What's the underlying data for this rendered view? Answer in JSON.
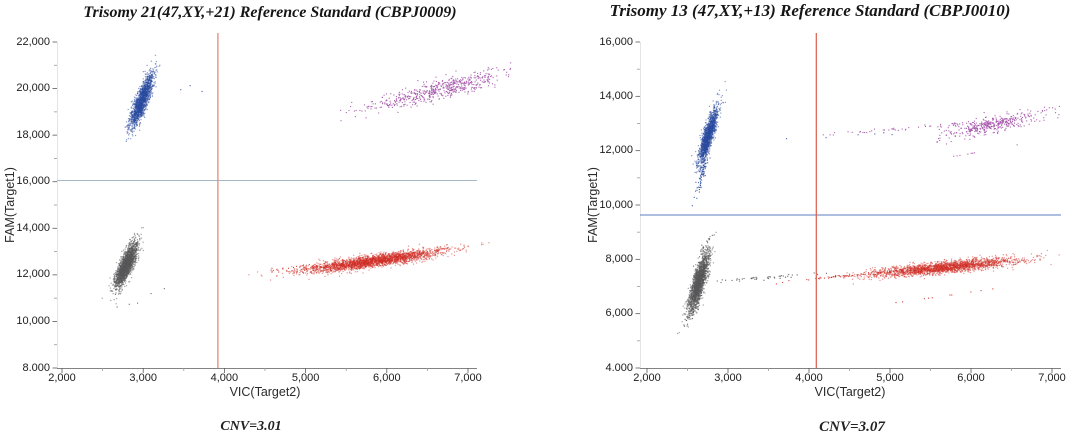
{
  "page": {
    "background_color": "#ffffff"
  },
  "chart_data": [
    {
      "type": "scatter",
      "title": "Trisomy 21(47,XY,+21) Reference Standard (CBPJ0009)",
      "cnv_label": "CNV=3.01",
      "xlabel": "VIC(Target2)",
      "ylabel": "FAM(Target1)",
      "x_range": [
        2000,
        7000
      ],
      "y_range": [
        8000,
        22000
      ],
      "x_ticks": [
        {
          "value": 2000,
          "label": "2,000"
        },
        {
          "value": 3000,
          "label": "3,000"
        },
        {
          "value": 4000,
          "label": "4,000"
        },
        {
          "value": 5000,
          "label": "5,000"
        },
        {
          "value": 6000,
          "label": "6,000"
        },
        {
          "value": 7000,
          "label": "7,000"
        }
      ],
      "y_ticks": [
        {
          "value": 22000,
          "label": "22,000"
        },
        {
          "value": 20000,
          "label": "20,000"
        },
        {
          "value": 18000,
          "label": "18,000"
        },
        {
          "value": 16000,
          "label": "16,000"
        },
        {
          "value": 14000,
          "label": "14,000"
        },
        {
          "value": 12000,
          "label": "12,000"
        },
        {
          "value": 10000,
          "label": "10,000"
        },
        {
          "value": 8000,
          "label": "8.000"
        }
      ],
      "x_minor_ticks": [
        2500,
        3500,
        4500,
        5500,
        6500
      ],
      "y_minor_ticks": [
        9000,
        11000,
        13000,
        15000,
        17000,
        19000,
        21000
      ],
      "grid": false,
      "legend": "none",
      "threshold_lines": {
        "horizontal": {
          "value": 16050,
          "color": "#a7b8c7"
        },
        "vertical": {
          "value": 3920,
          "color": "#e5806f"
        }
      },
      "clusters": [
        {
          "name": "fam-positive-blue-cluster",
          "color": "#2a4a9e",
          "count": 1600,
          "center": [
            2980,
            19450
          ],
          "axis1": [
            60,
            580
          ],
          "axis2": [
            38,
            -12
          ],
          "alpha": 0.55,
          "size": 1.2
        },
        {
          "name": "fam-positive-blue-outliers",
          "color": "#2a4a9e",
          "count": 7,
          "center": [
            3350,
            19850
          ],
          "axis1": [
            280,
            160
          ],
          "axis2": [
            60,
            -60
          ],
          "alpha": 0.9,
          "size": 1.1
        },
        {
          "name": "double-negative-gray-cluster",
          "color": "#58585a",
          "count": 2000,
          "center": [
            2790,
            12400
          ],
          "axis1": [
            55,
            480
          ],
          "axis2": [
            40,
            -12
          ],
          "alpha": 0.55,
          "size": 1.2
        },
        {
          "name": "double-negative-gray-outliers",
          "color": "#58585a",
          "count": 5,
          "center": [
            2950,
            10900
          ],
          "axis1": [
            180,
            350
          ],
          "axis2": [
            60,
            0
          ],
          "alpha": 0.9,
          "size": 1.1
        },
        {
          "name": "vic-positive-red-cluster",
          "color": "#d02d26",
          "count": 2600,
          "center": [
            5850,
            12600
          ],
          "axis1": [
            400,
            230
          ],
          "axis2": [
            140,
            -55
          ],
          "alpha": 0.5,
          "size": 1.2
        },
        {
          "name": "vic-positive-red-trail",
          "color": "#d02d26",
          "count": 60,
          "center": [
            5050,
            12320
          ],
          "axis1": [
            260,
            110
          ],
          "axis2": [
            100,
            -40
          ],
          "alpha": 0.9,
          "size": 1.1
        },
        {
          "name": "double-positive-purple-cluster",
          "color": "#a352a8",
          "count": 520,
          "center": [
            6700,
            20000
          ],
          "axis1": [
            400,
            420
          ],
          "axis2": [
            140,
            -75
          ],
          "alpha": 0.9,
          "size": 1.1
        },
        {
          "name": "double-positive-purple-trail",
          "color": "#a352a8",
          "count": 45,
          "center": [
            6050,
            19350
          ],
          "axis1": [
            240,
            170
          ],
          "axis2": [
            90,
            -50
          ],
          "alpha": 0.9,
          "size": 1.1
        }
      ]
    },
    {
      "type": "scatter",
      "title": "Trisomy 13 (47,XY,+13) Reference Standard (CBPJ0010)",
      "cnv_label": "CNV=3.07",
      "xlabel": "VIC(Target2)",
      "ylabel": "FAM(Target1)",
      "x_range": [
        2000,
        7000
      ],
      "y_range": [
        4000,
        16000
      ],
      "x_ticks": [
        {
          "value": 2000,
          "label": "2,000"
        },
        {
          "value": 3000,
          "label": "3,000"
        },
        {
          "value": 4000,
          "label": "4,000"
        },
        {
          "value": 5000,
          "label": "5,000"
        },
        {
          "value": 6000,
          "label": "6,000"
        },
        {
          "value": 7000,
          "label": "7,000"
        }
      ],
      "y_ticks": [
        {
          "value": 16000,
          "label": "16,000"
        },
        {
          "value": 14000,
          "label": "14,000"
        },
        {
          "value": 12000,
          "label": "12,000"
        },
        {
          "value": 10000,
          "label": "10,000"
        },
        {
          "value": 8000,
          "label": "8,000"
        },
        {
          "value": 6000,
          "label": "6,000"
        },
        {
          "value": 4000,
          "label": "4.000"
        }
      ],
      "x_minor_ticks": [
        2500,
        3500,
        4500,
        5500,
        6500
      ],
      "y_minor_ticks": [
        5000,
        7000,
        9000,
        11000,
        13000,
        15000
      ],
      "grid": false,
      "legend": "none",
      "threshold_lines": {
        "horizontal": {
          "value": 9630,
          "color": "#5d7ec1"
        },
        "vertical": {
          "value": 4090,
          "color": "#d95c49"
        }
      },
      "clusters": [
        {
          "name": "fam-positive-blue-cluster",
          "color": "#2a4a9e",
          "count": 1500,
          "center": [
            2755,
            12550
          ],
          "axis1": [
            52,
            520
          ],
          "axis2": [
            30,
            -10
          ],
          "alpha": 0.55,
          "size": 1.2
        },
        {
          "name": "fam-positive-blue-tail",
          "color": "#2a4a9e",
          "count": 75,
          "center": [
            2690,
            11250
          ],
          "axis1": [
            38,
            480
          ],
          "axis2": [
            20,
            -2
          ],
          "alpha": 0.9,
          "size": 1.1
        },
        {
          "name": "fam-positive-blue-outliers",
          "color": "#2a4a9e",
          "count": 6,
          "center": [
            4300,
            12500
          ],
          "axis1": [
            520,
            90
          ],
          "axis2": [
            40,
            -30
          ],
          "alpha": 0.9,
          "size": 1.1
        },
        {
          "name": "double-negative-gray-cluster",
          "color": "#58585a",
          "count": 2000,
          "center": [
            2640,
            7150
          ],
          "axis1": [
            50,
            520
          ],
          "axis2": [
            36,
            -10
          ],
          "alpha": 0.55,
          "size": 1.2
        },
        {
          "name": "double-negative-gray-tail-up",
          "color": "#58585a",
          "count": 25,
          "center": [
            2720,
            8500
          ],
          "axis1": [
            45,
            260
          ],
          "axis2": [
            22,
            -5
          ],
          "alpha": 0.9,
          "size": 1.1
        },
        {
          "name": "double-negative-gray-tail-down",
          "color": "#58585a",
          "count": 45,
          "center": [
            2560,
            6050
          ],
          "axis1": [
            45,
            280
          ],
          "axis2": [
            22,
            0
          ],
          "alpha": 0.9,
          "size": 1.1
        },
        {
          "name": "double-negative-gray-trail-right",
          "color": "#58585a",
          "count": 45,
          "center": [
            3350,
            7300
          ],
          "axis1": [
            420,
            80
          ],
          "axis2": [
            60,
            45
          ],
          "alpha": 0.9,
          "size": 1.1
        },
        {
          "name": "vic-positive-red-cluster",
          "color": "#d02d26",
          "count": 2200,
          "center": [
            5680,
            7700
          ],
          "axis1": [
            420,
            150
          ],
          "axis2": [
            135,
            -60
          ],
          "alpha": 0.5,
          "size": 1.2
        },
        {
          "name": "vic-positive-red-trail",
          "color": "#d02d26",
          "count": 85,
          "center": [
            4650,
            7450
          ],
          "axis1": [
            400,
            110
          ],
          "axis2": [
            90,
            45
          ],
          "alpha": 0.9,
          "size": 1.1
        },
        {
          "name": "vic-positive-red-outliers-low",
          "color": "#d02d26",
          "count": 10,
          "center": [
            5550,
            6600
          ],
          "axis1": [
            380,
            160
          ],
          "axis2": [
            80,
            40
          ],
          "alpha": 0.9,
          "size": 1.1
        },
        {
          "name": "double-positive-purple-cluster",
          "color": "#a352a8",
          "count": 400,
          "center": [
            6250,
            12950
          ],
          "axis1": [
            270,
            240
          ],
          "axis2": [
            110,
            -60
          ],
          "alpha": 0.9,
          "size": 1.1
        },
        {
          "name": "double-positive-purple-trail",
          "color": "#a352a8",
          "count": 55,
          "center": [
            5350,
            12850
          ],
          "axis1": [
            560,
            130
          ],
          "axis2": [
            75,
            55
          ],
          "alpha": 0.9,
          "size": 1.1
        },
        {
          "name": "double-positive-purple-outliers",
          "color": "#a352a8",
          "count": 8,
          "center": [
            6000,
            11900
          ],
          "axis1": [
            320,
            170
          ],
          "axis2": [
            60,
            40
          ],
          "alpha": 0.9,
          "size": 1.1
        }
      ]
    }
  ]
}
